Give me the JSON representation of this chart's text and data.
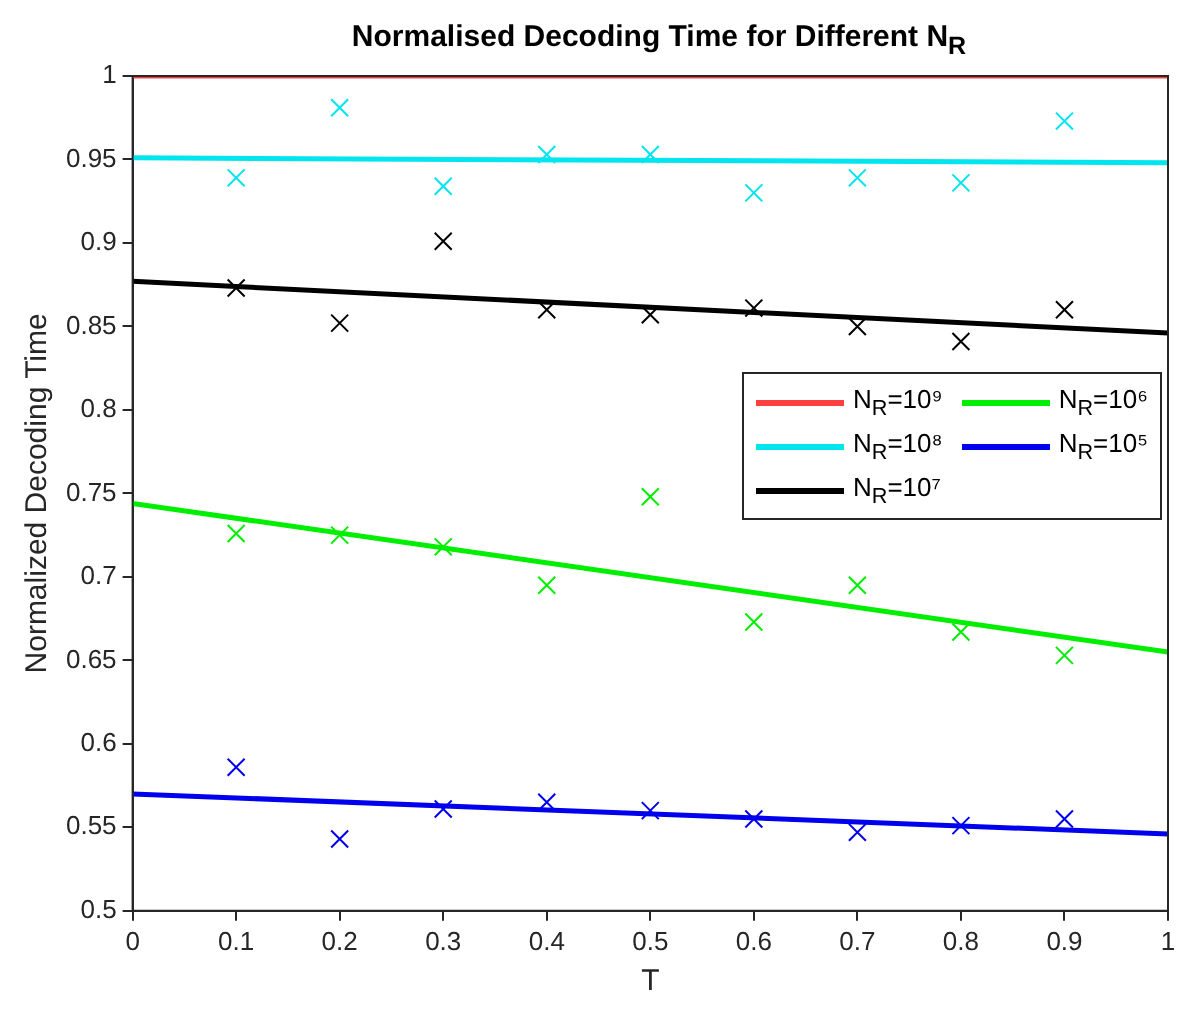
{
  "chart_data": {
    "type": "line",
    "title": "Normalised Decoding Time for Different N$_{R}$",
    "xlabel": "T",
    "ylabel": "Normalized Decoding Time",
    "xlim": [
      0,
      1
    ],
    "xticks": [
      0,
      0.1,
      0.2,
      0.3,
      0.4,
      0.5,
      0.6,
      0.7,
      0.8,
      0.9,
      1
    ],
    "ylim": [
      0.5,
      1
    ],
    "yticks": [
      0.5,
      0.55,
      0.6,
      0.65,
      0.7,
      0.75,
      0.8,
      0.85,
      0.9,
      0.95,
      1
    ],
    "grid": false,
    "legend": "right",
    "series": [
      {
        "name": "N$_{R}$=10⁹",
        "color": "#ff4040",
        "type": "line",
        "marker": "none",
        "x": [
          0,
          1
        ],
        "values": [
          1,
          1
        ]
      },
      {
        "name": "N$_{R}$=10⁸",
        "color": "#00e5ee",
        "type": "line",
        "marker": "none",
        "x": [
          0,
          1
        ],
        "values": [
          0.951,
          0.948
        ]
      },
      {
        "name": "N$_{R}$=10⁷",
        "color": "#000000",
        "type": "line",
        "marker": "none",
        "x": [
          0,
          1
        ],
        "values": [
          0.877,
          0.846
        ]
      },
      {
        "name": "N$_{R}$=10⁶",
        "color": "#00ee00",
        "type": "line",
        "marker": "none",
        "x": [
          0,
          1
        ],
        "values": [
          0.744,
          0.655
        ]
      },
      {
        "name": "N$_{R}$=10⁵",
        "color": "#0000ee",
        "type": "line",
        "marker": "none",
        "x": [
          0,
          1
        ],
        "values": [
          0.57,
          0.546
        ]
      },
      {
        "color": "#00e5ee",
        "type": "scatter",
        "marker": "cross",
        "x": [
          0.1,
          0.2,
          0.3,
          0.4,
          0.5,
          0.6,
          0.7,
          0.8,
          0.9
        ],
        "values": [
          0.939,
          0.981,
          0.934,
          0.953,
          0.953,
          0.93,
          0.939,
          0.936,
          0.973
        ]
      },
      {
        "color": "#000000",
        "type": "scatter",
        "marker": "cross",
        "x": [
          0.1,
          0.2,
          0.3,
          0.4,
          0.5,
          0.6,
          0.7,
          0.8,
          0.9
        ],
        "values": [
          0.873,
          0.852,
          0.901,
          0.86,
          0.857,
          0.861,
          0.85,
          0.841,
          0.86
        ]
      },
      {
        "color": "#00ee00",
        "type": "scatter",
        "marker": "cross",
        "x": [
          0.1,
          0.2,
          0.3,
          0.4,
          0.5,
          0.6,
          0.7,
          0.8,
          0.9
        ],
        "values": [
          0.726,
          0.725,
          0.718,
          0.695,
          0.748,
          0.673,
          0.695,
          0.667,
          0.653
        ]
      },
      {
        "color": "#0000ee",
        "type": "scatter",
        "marker": "cross",
        "x": [
          0.1,
          0.2,
          0.3,
          0.4,
          0.5,
          0.6,
          0.7,
          0.8,
          0.9
        ],
        "values": [
          0.586,
          0.543,
          0.561,
          0.565,
          0.56,
          0.555,
          0.547,
          0.551,
          0.555
        ]
      }
    ]
  }
}
